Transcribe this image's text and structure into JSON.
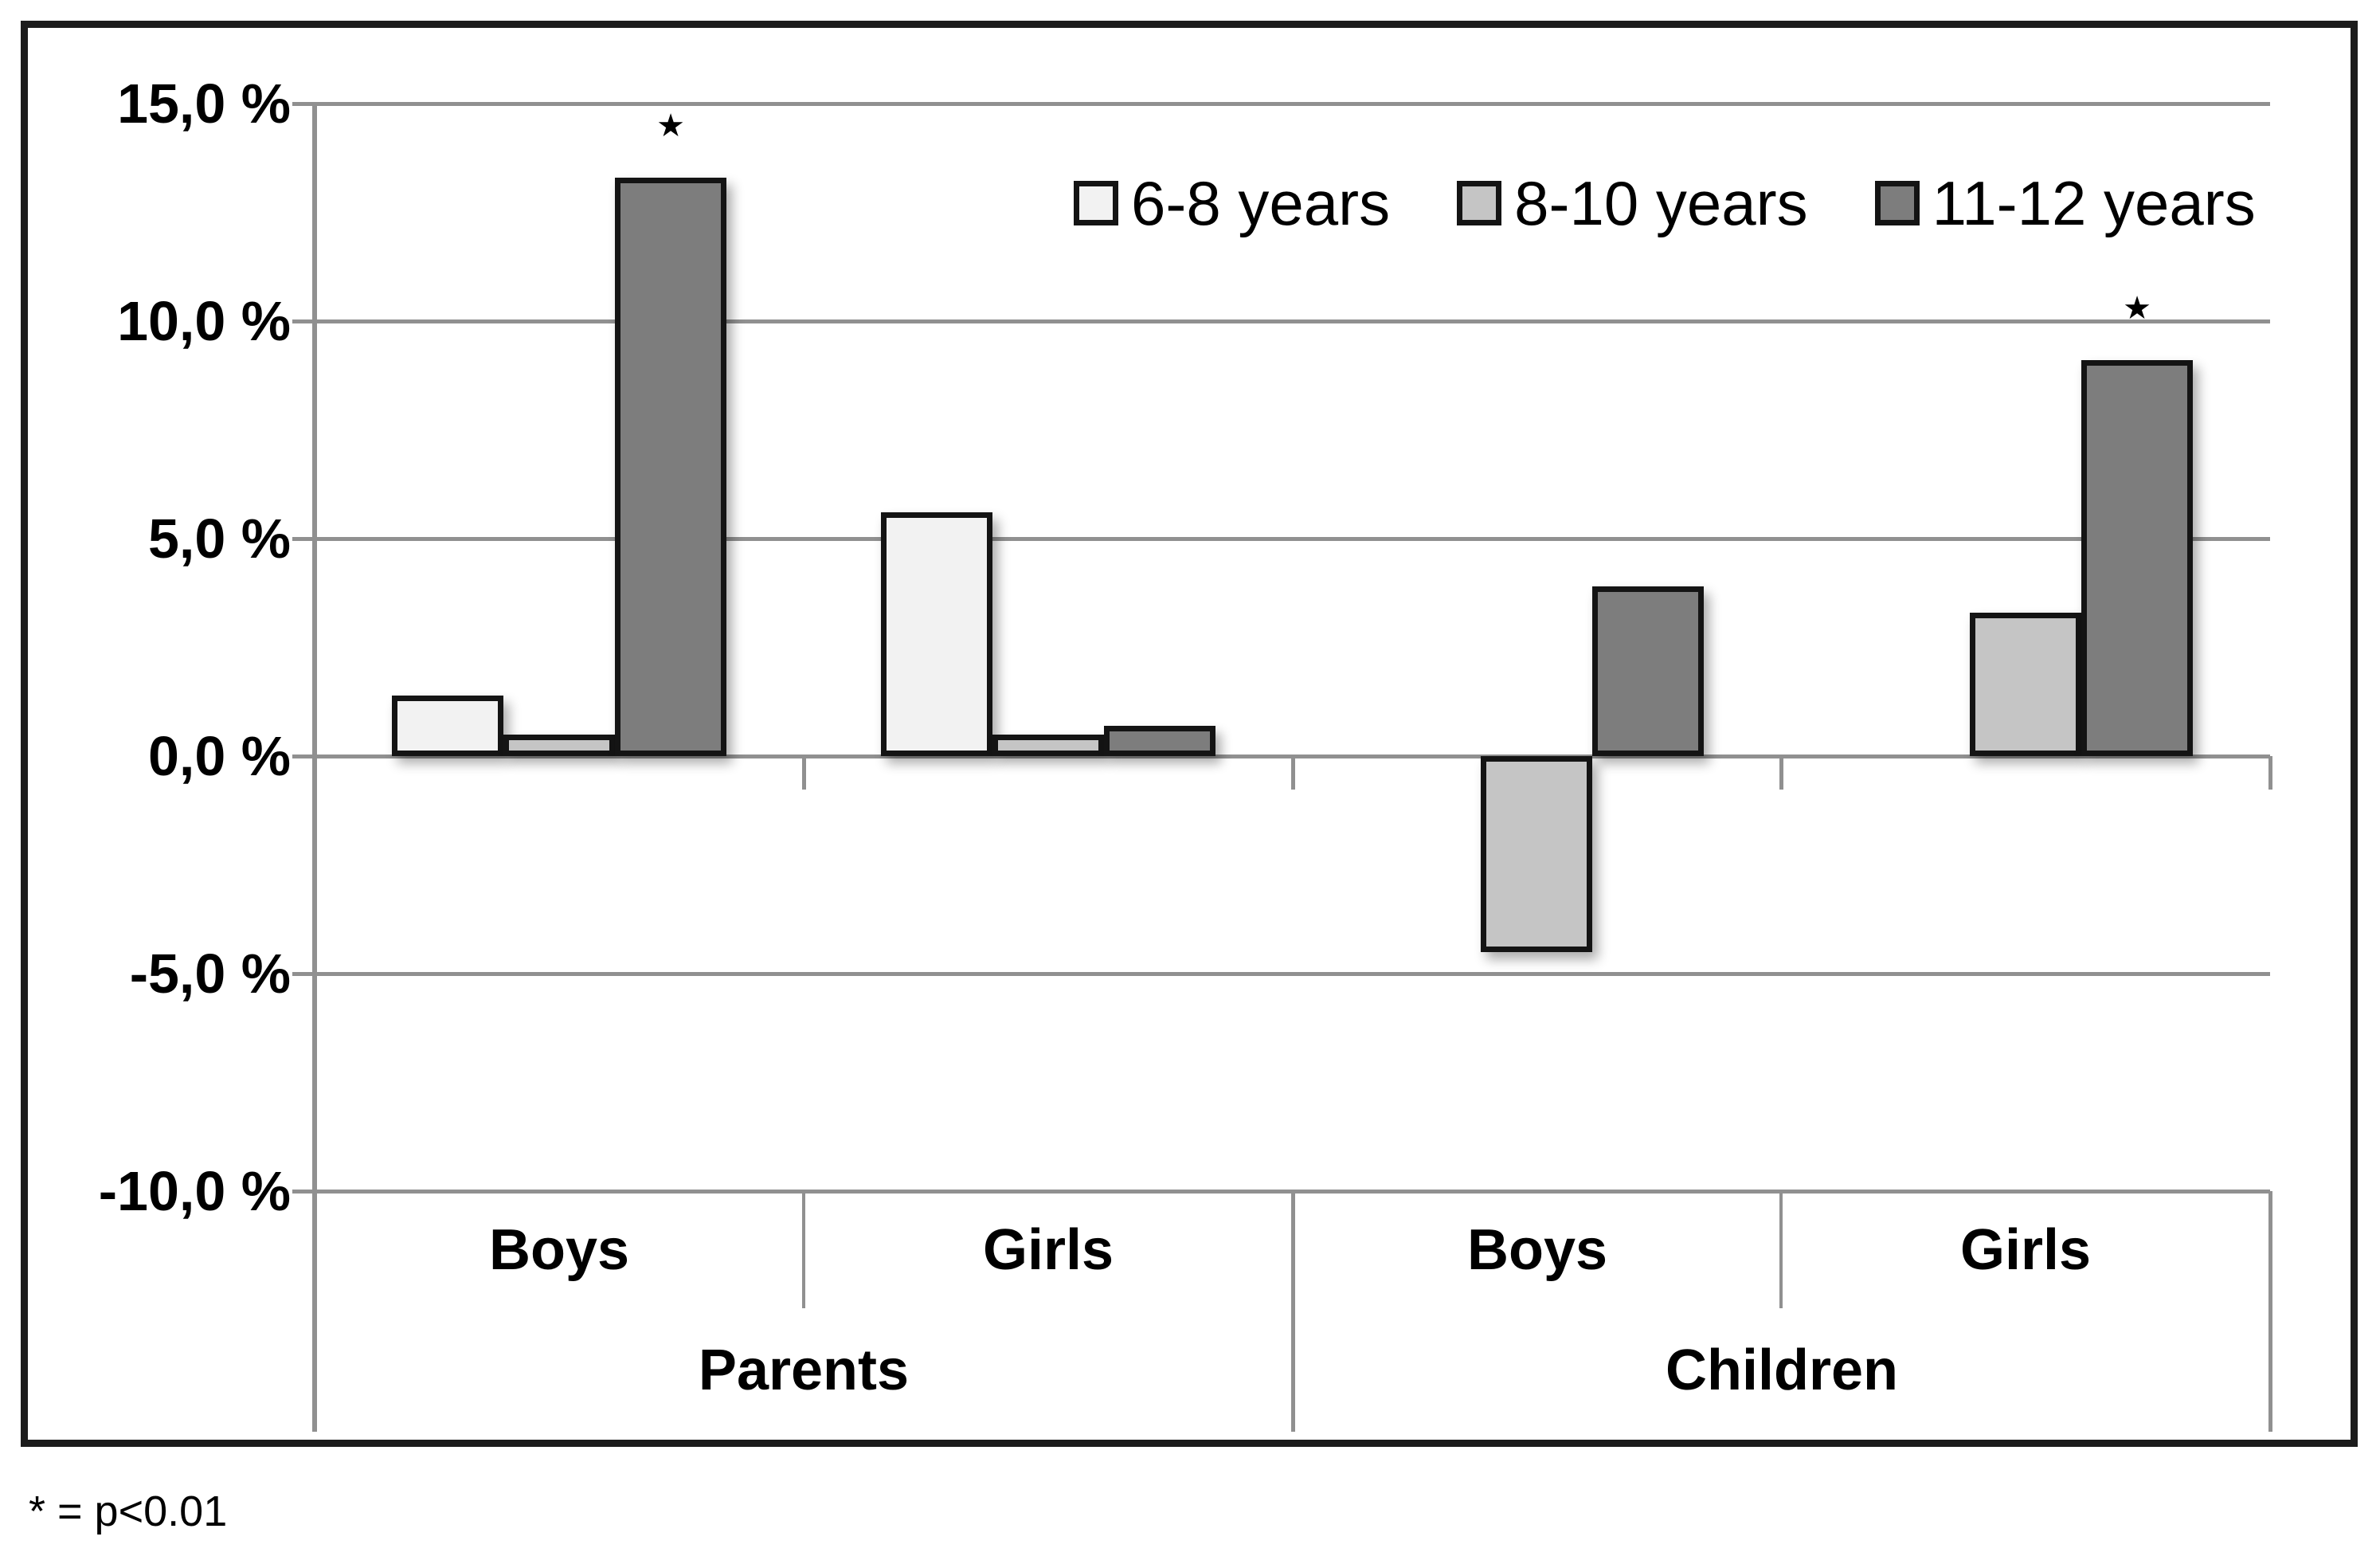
{
  "chart_data": {
    "type": "bar",
    "title": "",
    "xlabel": "",
    "ylabel": "",
    "grid": true,
    "legend_position": "top-right-inside",
    "y_axis": {
      "min": -10,
      "max": 15,
      "unit": "%",
      "ticks": [
        {
          "label": "15,0 %",
          "value": 15
        },
        {
          "label": "10,0 %",
          "value": 10
        },
        {
          "label": "5,0 %",
          "value": 5
        },
        {
          "label": "0,0 %",
          "value": 0
        },
        {
          "label": "-5,0 %",
          "value": -5
        },
        {
          "label": "-10,0 %",
          "value": -10
        }
      ]
    },
    "series": [
      {
        "name": "6-8 years",
        "color": "#f2f2f2"
      },
      {
        "name": "8-10 years",
        "color": "#c5c5c5"
      },
      {
        "name": "11-12 years",
        "color": "#7d7d7d"
      }
    ],
    "groups": [
      {
        "group": "Parents",
        "sub": "Boys",
        "values": [
          1.4,
          0.5,
          13.3
        ],
        "significant": [
          false,
          false,
          true
        ]
      },
      {
        "group": "Parents",
        "sub": "Girls",
        "values": [
          5.6,
          0.5,
          0.7
        ],
        "significant": [
          false,
          false,
          false
        ]
      },
      {
        "group": "Children",
        "sub": "Boys",
        "values": [
          0,
          -4.5,
          3.9
        ],
        "significant": [
          false,
          false,
          false
        ]
      },
      {
        "group": "Children",
        "sub": "Girls",
        "values": [
          0,
          3.3,
          9.1
        ],
        "significant": [
          false,
          false,
          true
        ]
      }
    ],
    "group_labels": [
      "Parents",
      "Children"
    ],
    "significance_marker": "★",
    "footnote": "* = p<0.01",
    "colors": {
      "gridline": "#909090",
      "bar_border": "#141414",
      "frame": "#1c1c1c",
      "text": "#000000"
    }
  }
}
